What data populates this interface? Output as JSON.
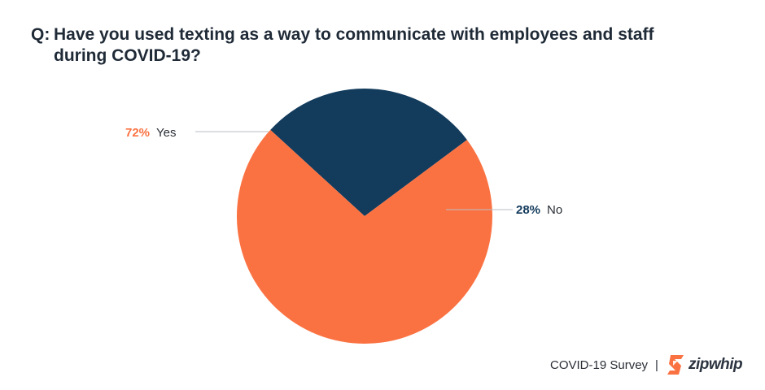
{
  "title": {
    "prefix": "Q:",
    "text": "Have you used texting as a way to communicate with employees and staff during COVID-19?"
  },
  "chart_data": {
    "type": "pie",
    "slices": [
      {
        "label": "Yes",
        "value": 72,
        "value_text": "72%",
        "color": "#fb7242"
      },
      {
        "label": "No",
        "value": 28,
        "value_text": "28%",
        "color": "#133b5c"
      }
    ],
    "legend": "none"
  },
  "footer": {
    "survey_label": "COVID-19 Survey",
    "separator": "|",
    "brand": "zipwhip",
    "logo_icon": "zipwhip-logo-icon",
    "brand_color": "#fb7242"
  }
}
